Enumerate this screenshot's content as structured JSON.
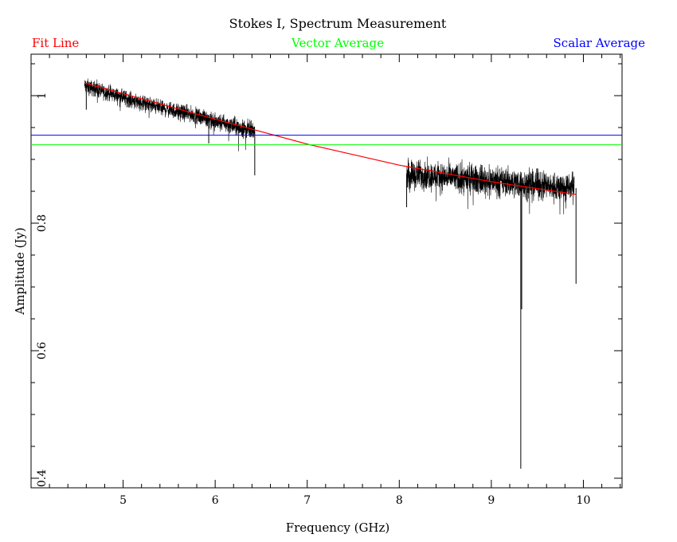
{
  "chart_data": {
    "type": "line",
    "title": "Stokes I, Spectrum Measurement",
    "xlabel": "Frequency (GHz)",
    "ylabel": "Amplitude (Jy)",
    "xlim": [
      4.0,
      10.42
    ],
    "ylim": [
      0.385,
      1.065
    ],
    "x_ticks": [
      5,
      6,
      7,
      8,
      9,
      10
    ],
    "y_ticks": [
      0.4,
      0.6,
      0.8,
      1
    ],
    "x_tick_labels": [
      "5",
      "6",
      "7",
      "8",
      "9",
      "10"
    ],
    "y_tick_labels": [
      "0.4",
      "0.6",
      "0.8",
      "1"
    ],
    "grid": false,
    "legend": {
      "placement": "top",
      "entries": [
        {
          "name": "Fit Line",
          "color": "#ff0000"
        },
        {
          "name": "Vector Average",
          "color": "#00ff00"
        },
        {
          "name": "Scalar Average",
          "color": "#0000ff"
        }
      ]
    },
    "series": [
      {
        "kind": "spectrum",
        "color": "#000000",
        "segments": [
          {
            "x": [
              4.58,
              4.75,
              5.0,
              5.25,
              5.5,
              5.75,
              5.95
            ],
            "y": [
              1.015,
              1.008,
              0.997,
              0.987,
              0.978,
              0.97,
              0.963
            ],
            "noise": 0.012
          },
          {
            "x": [
              5.95,
              6.1,
              6.25,
              6.43
            ],
            "y": [
              0.96,
              0.956,
              0.95,
              0.945
            ],
            "noise": 0.014
          },
          {
            "x": [
              8.08,
              8.3,
              8.6,
              8.9,
              9.2,
              9.5,
              9.9
            ],
            "y": [
              0.878,
              0.875,
              0.871,
              0.868,
              0.864,
              0.86,
              0.855
            ],
            "noise": 0.022
          }
        ],
        "spikes": [
          {
            "x": 4.6,
            "y": 0.978
          },
          {
            "x": 5.93,
            "y": 0.925
          },
          {
            "x": 6.43,
            "y": 0.875
          },
          {
            "x": 8.08,
            "y": 0.825
          },
          {
            "x": 9.32,
            "y": 0.415
          },
          {
            "x": 9.33,
            "y": 0.665
          },
          {
            "x": 9.92,
            "y": 0.705
          }
        ]
      },
      {
        "name": "Fit Line",
        "kind": "fit",
        "color": "#ff0000",
        "x": [
          4.58,
          6.0,
          7.0,
          8.0,
          9.0,
          9.92
        ],
        "y": [
          1.02,
          0.963,
          0.924,
          0.891,
          0.865,
          0.845
        ]
      },
      {
        "name": "Vector Average",
        "kind": "hline",
        "color": "#00ff00",
        "y": 0.923
      },
      {
        "name": "Scalar Average",
        "kind": "hline",
        "color": "#0000ff",
        "y": 0.938
      }
    ]
  }
}
